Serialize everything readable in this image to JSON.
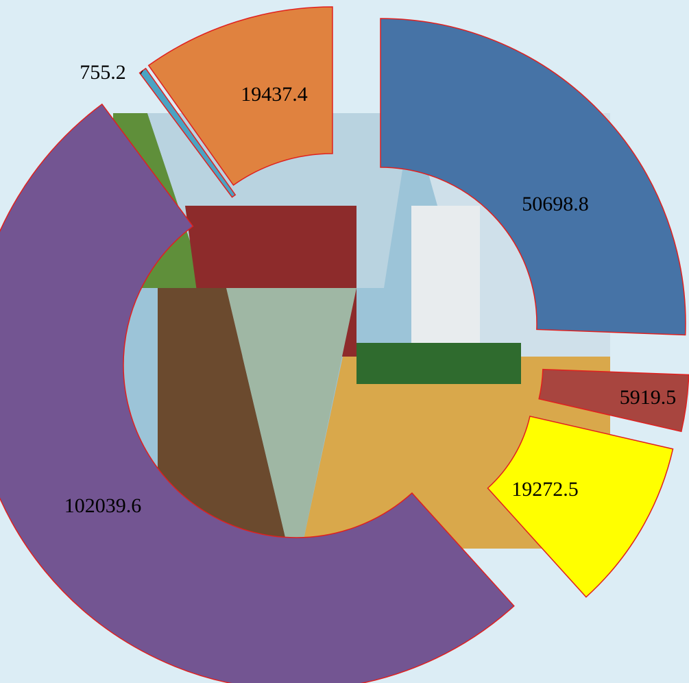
{
  "chart_data": {
    "type": "pie",
    "values": [
      50698.8,
      5919.5,
      19272.5,
      102039.6,
      755.2,
      19437.4
    ],
    "colors": [
      "#4673a6",
      "#a8453f",
      "#ffff00",
      "#735592",
      "#4aa3c3",
      "#e0823f"
    ]
  }
}
